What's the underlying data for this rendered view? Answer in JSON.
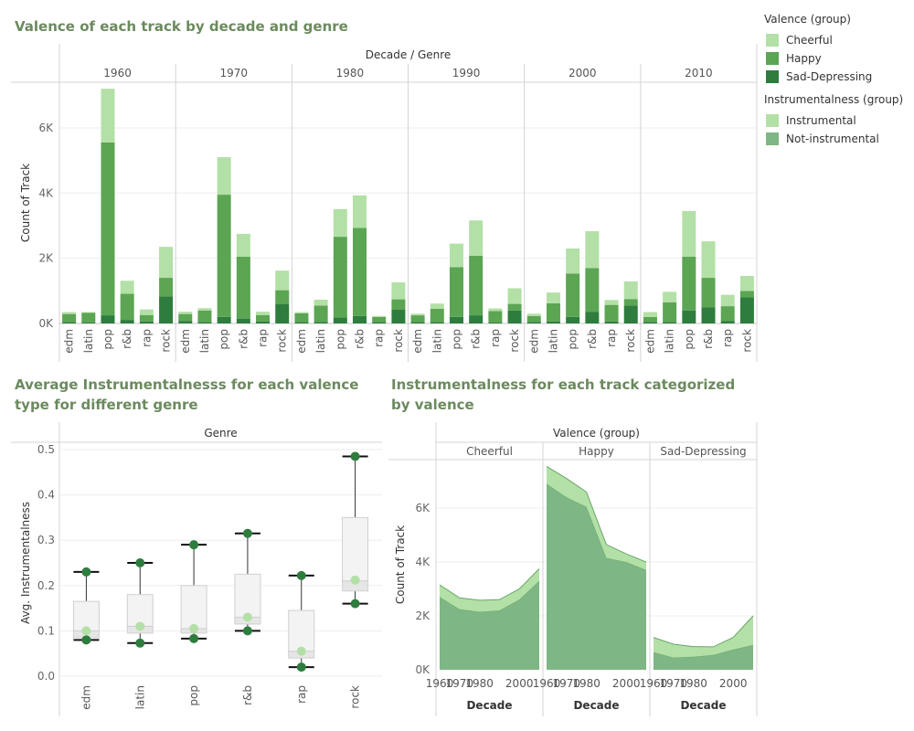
{
  "titles": {
    "t1": "Valence of each track by decade and genre",
    "t2": "Average Instrumentalnesss for each valence type for different genre",
    "t3": "Instrumentalness for each track categorized by valence"
  },
  "legend": {
    "valence": {
      "title": "Valence (group)",
      "items": [
        {
          "label": "Cheerful",
          "color": "#b3e0a6"
        },
        {
          "label": "Happy",
          "color": "#5ba553"
        },
        {
          "label": "Sad-Depressing",
          "color": "#2e7d3e"
        }
      ]
    },
    "instrumental": {
      "title": "Instrumentalness (group)",
      "items": [
        {
          "label": "Instrumental",
          "color": "#b3e0a6"
        },
        {
          "label": "Not-instrumental",
          "color": "#7fb685"
        }
      ]
    }
  },
  "chart_data": [
    {
      "id": "bar",
      "type": "bar",
      "stacked": true,
      "header": "Decade  /  Genre",
      "ylabel": "Count of Track",
      "ylim": [
        0,
        7400
      ],
      "yticks": [
        0,
        2000,
        4000,
        6000
      ],
      "ytick_labels": [
        "0K",
        "2K",
        "4K",
        "6K"
      ],
      "decades": [
        "1960",
        "1970",
        "1980",
        "1990",
        "2000",
        "2010"
      ],
      "genres": [
        "edm",
        "latin",
        "pop",
        "r&b",
        "rap",
        "rock"
      ],
      "series": [
        {
          "name": "Sad-Depressing",
          "values": [
            [
              40,
              30,
              250,
              110,
              60,
              830
            ],
            [
              80,
              40,
              200,
              150,
              60,
              600
            ],
            [
              40,
              50,
              180,
              230,
              40,
              420
            ],
            [
              40,
              40,
              200,
              250,
              30,
              400
            ],
            [
              50,
              60,
              200,
              350,
              60,
              550
            ],
            [
              50,
              50,
              400,
              500,
              80,
              800
            ]
          ]
        },
        {
          "name": "Happy",
          "values": [
            [
              250,
              300,
              5300,
              800,
              200,
              570
            ],
            [
              210,
              360,
              3750,
              1900,
              200,
              420
            ],
            [
              270,
              500,
              2480,
              2700,
              160,
              320
            ],
            [
              210,
              410,
              1530,
              1830,
              350,
              200
            ],
            [
              180,
              560,
              1330,
              1350,
              510,
              200
            ],
            [
              150,
              600,
              1650,
              900,
              450,
              200
            ]
          ]
        },
        {
          "name": "Cheerful",
          "values": [
            [
              60,
              20,
              1650,
              400,
              170,
              950
            ],
            [
              70,
              70,
              1150,
              700,
              100,
              600
            ],
            [
              40,
              180,
              850,
              1000,
              30,
              520
            ],
            [
              50,
              160,
              720,
              1080,
              80,
              480
            ],
            [
              70,
              330,
              770,
              1130,
              150,
              540
            ],
            [
              150,
              320,
              1400,
              1120,
              350,
              460
            ]
          ]
        }
      ]
    },
    {
      "id": "box",
      "type": "box",
      "header": "Genre",
      "ylabel": "Avg. Instrumentalness",
      "ylim": [
        0,
        0.5
      ],
      "yticks": [
        0,
        0.1,
        0.2,
        0.3,
        0.4,
        0.5
      ],
      "ytick_labels": [
        "0.0",
        "0.1",
        "0.2",
        "0.3",
        "0.4",
        "0.5"
      ],
      "categories": [
        "edm",
        "latin",
        "pop",
        "r&b",
        "rap",
        "rock"
      ],
      "boxes": [
        {
          "whisker_low": 0.08,
          "q1": 0.085,
          "median": 0.1,
          "q3": 0.165,
          "whisker_high": 0.23
        },
        {
          "whisker_low": 0.073,
          "q1": 0.095,
          "median": 0.11,
          "q3": 0.18,
          "whisker_high": 0.25
        },
        {
          "whisker_low": 0.083,
          "q1": 0.095,
          "median": 0.105,
          "q3": 0.2,
          "whisker_high": 0.29
        },
        {
          "whisker_low": 0.1,
          "q1": 0.115,
          "median": 0.13,
          "q3": 0.225,
          "whisker_high": 0.315
        },
        {
          "whisker_low": 0.02,
          "q1": 0.04,
          "median": 0.055,
          "q3": 0.145,
          "whisker_high": 0.222
        },
        {
          "whisker_low": 0.16,
          "q1": 0.188,
          "median": 0.21,
          "q3": 0.35,
          "whisker_high": 0.485
        }
      ],
      "points": [
        [
          0.23,
          0.1,
          0.08
        ],
        [
          0.25,
          0.11,
          0.073
        ],
        [
          0.29,
          0.105,
          0.083
        ],
        [
          0.315,
          0.13,
          0.1
        ],
        [
          0.222,
          0.055,
          0.02
        ],
        [
          0.485,
          0.212,
          0.16
        ]
      ],
      "point_colors": [
        "#2e7d3e",
        "#b3e0a6",
        "#2e7d3e"
      ]
    },
    {
      "id": "area",
      "type": "area",
      "stacked": true,
      "header": "Valence (group)",
      "ylabel": "Count of Track",
      "xlabel": "Decade",
      "ylim": [
        0,
        7800
      ],
      "yticks": [
        0,
        2000,
        4000,
        6000
      ],
      "ytick_labels": [
        "0K",
        "2K",
        "4K",
        "6K"
      ],
      "x": [
        1960,
        1970,
        1980,
        1990,
        2000,
        2010
      ],
      "xticks": [
        1960,
        1970,
        1980,
        2000
      ],
      "xtick_labels": [
        "1960",
        "1970",
        "1980",
        "2000"
      ],
      "panels": [
        {
          "label": "Cheerful",
          "series": [
            {
              "name": "Not-instrumental",
              "values": [
                2700,
                2250,
                2150,
                2200,
                2600,
                3300
              ]
            },
            {
              "name": "Instrumental",
              "values": [
                450,
                420,
                430,
                400,
                400,
                450
              ]
            }
          ]
        },
        {
          "label": "Happy",
          "series": [
            {
              "name": "Not-instrumental",
              "values": [
                6900,
                6400,
                6050,
                4150,
                4000,
                3700
              ]
            },
            {
              "name": "Instrumental",
              "values": [
                650,
                700,
                550,
                500,
                300,
                300
              ]
            }
          ]
        },
        {
          "label": "Sad-Depressing",
          "series": [
            {
              "name": "Not-instrumental",
              "values": [
                650,
                450,
                480,
                550,
                750,
                920
              ]
            },
            {
              "name": "Instrumental",
              "values": [
                550,
                500,
                380,
                300,
                450,
                1080
              ]
            }
          ]
        }
      ]
    }
  ]
}
